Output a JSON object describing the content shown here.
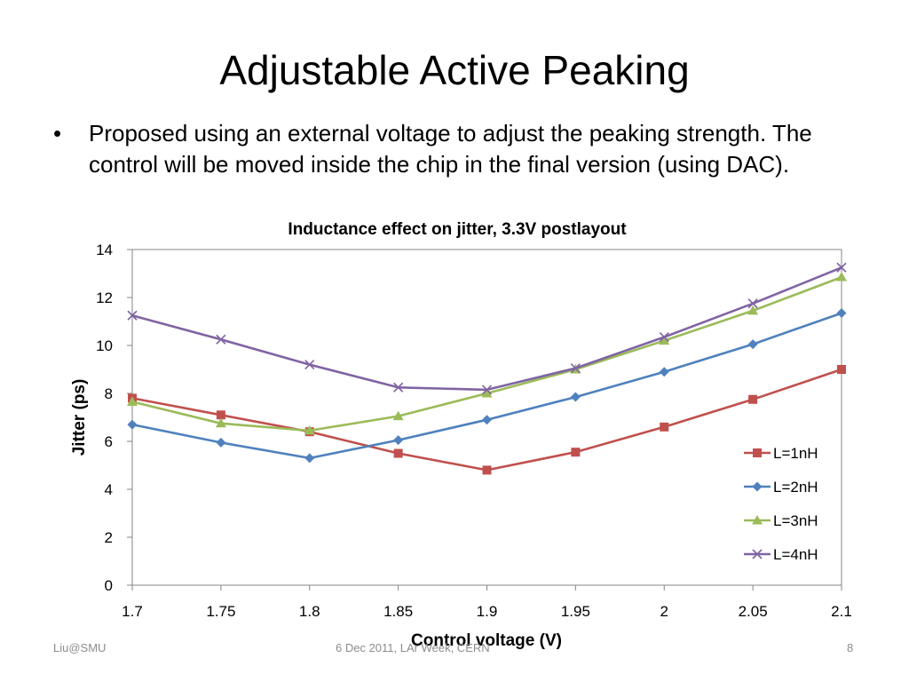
{
  "slide": {
    "title": "Adjustable Active Peaking",
    "bullet": "Proposed using an external voltage to adjust the peaking strength. The control will be moved inside the chip in the final version (using DAC).",
    "bullet_marker": "•"
  },
  "footer": {
    "left": "Liu@SMU",
    "center": "6 Dec 2011, LAr Week, CERN",
    "right": "8"
  },
  "chart_data": {
    "type": "line",
    "title": "Inductance effect on jitter, 3.3V postlayout",
    "xlabel": "Control voltage (V)",
    "ylabel": "Jitter (ps)",
    "x": [
      1.7,
      1.75,
      1.8,
      1.85,
      1.9,
      1.95,
      2.0,
      2.05,
      2.1
    ],
    "x_tick_labels": [
      "1.7",
      "1.75",
      "1.8",
      "1.85",
      "1.9",
      "1.95",
      "2",
      "2.05",
      "2.1"
    ],
    "y_ticks": [
      0,
      2,
      4,
      6,
      8,
      10,
      12,
      14
    ],
    "xlim": [
      1.7,
      2.1
    ],
    "ylim": [
      0,
      14
    ],
    "grid": false,
    "legend_position": "right",
    "series": [
      {
        "name": "L=1nH",
        "color": "#C0504D",
        "marker": "square",
        "values": [
          7.8,
          7.1,
          6.4,
          5.5,
          4.8,
          5.55,
          6.6,
          7.75,
          9.0
        ]
      },
      {
        "name": "L=2nH",
        "color": "#4F81BD",
        "marker": "diamond",
        "values": [
          6.7,
          5.95,
          5.3,
          6.05,
          6.9,
          7.85,
          8.9,
          10.05,
          11.35
        ]
      },
      {
        "name": "L=3nH",
        "color": "#9BBB59",
        "marker": "triangle",
        "values": [
          7.65,
          6.75,
          6.45,
          7.05,
          8.0,
          9.0,
          10.2,
          11.45,
          12.85
        ]
      },
      {
        "name": "L=4nH",
        "color": "#8064A2",
        "marker": "x",
        "values": [
          11.25,
          10.25,
          9.2,
          8.25,
          8.15,
          9.05,
          10.35,
          11.75,
          13.25
        ]
      }
    ]
  }
}
